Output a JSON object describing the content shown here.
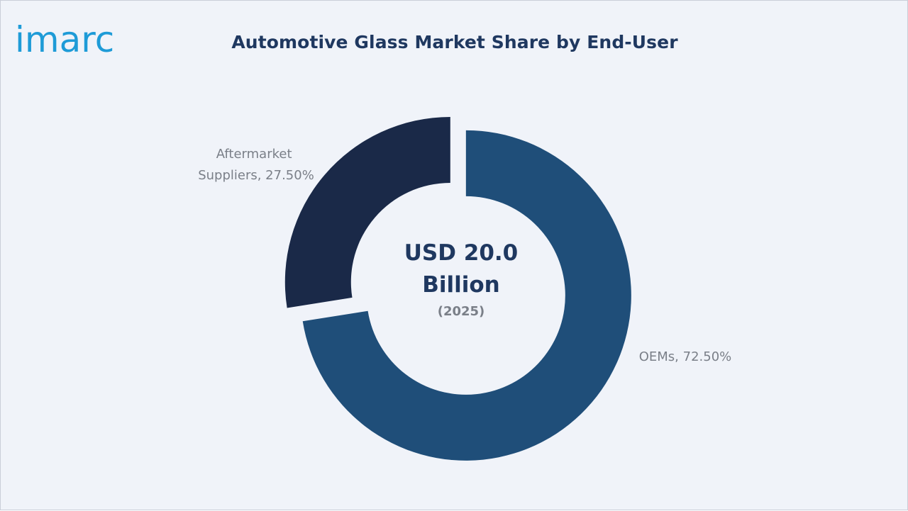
{
  "brand": {
    "logo_text": "imarc",
    "color": "#1e9bd7"
  },
  "header": {
    "title": "Automotive Glass Market Share by End-User"
  },
  "chart_data": {
    "type": "pie",
    "variant": "donut",
    "title": "Automotive Glass Market Share by End-User",
    "categories": [
      "OEMs",
      "Aftermarket Suppliers"
    ],
    "values": [
      72.5,
      27.5
    ],
    "unit": "%",
    "labels": [
      "OEMs, 72.50%",
      "Aftermarket Suppliers, 27.50%"
    ],
    "colors": [
      "#1f4e79",
      "#1a2948"
    ],
    "center_label": {
      "line1": "USD 20.0",
      "line2": "Billion",
      "line3": "(2025)"
    },
    "legend": "none"
  }
}
